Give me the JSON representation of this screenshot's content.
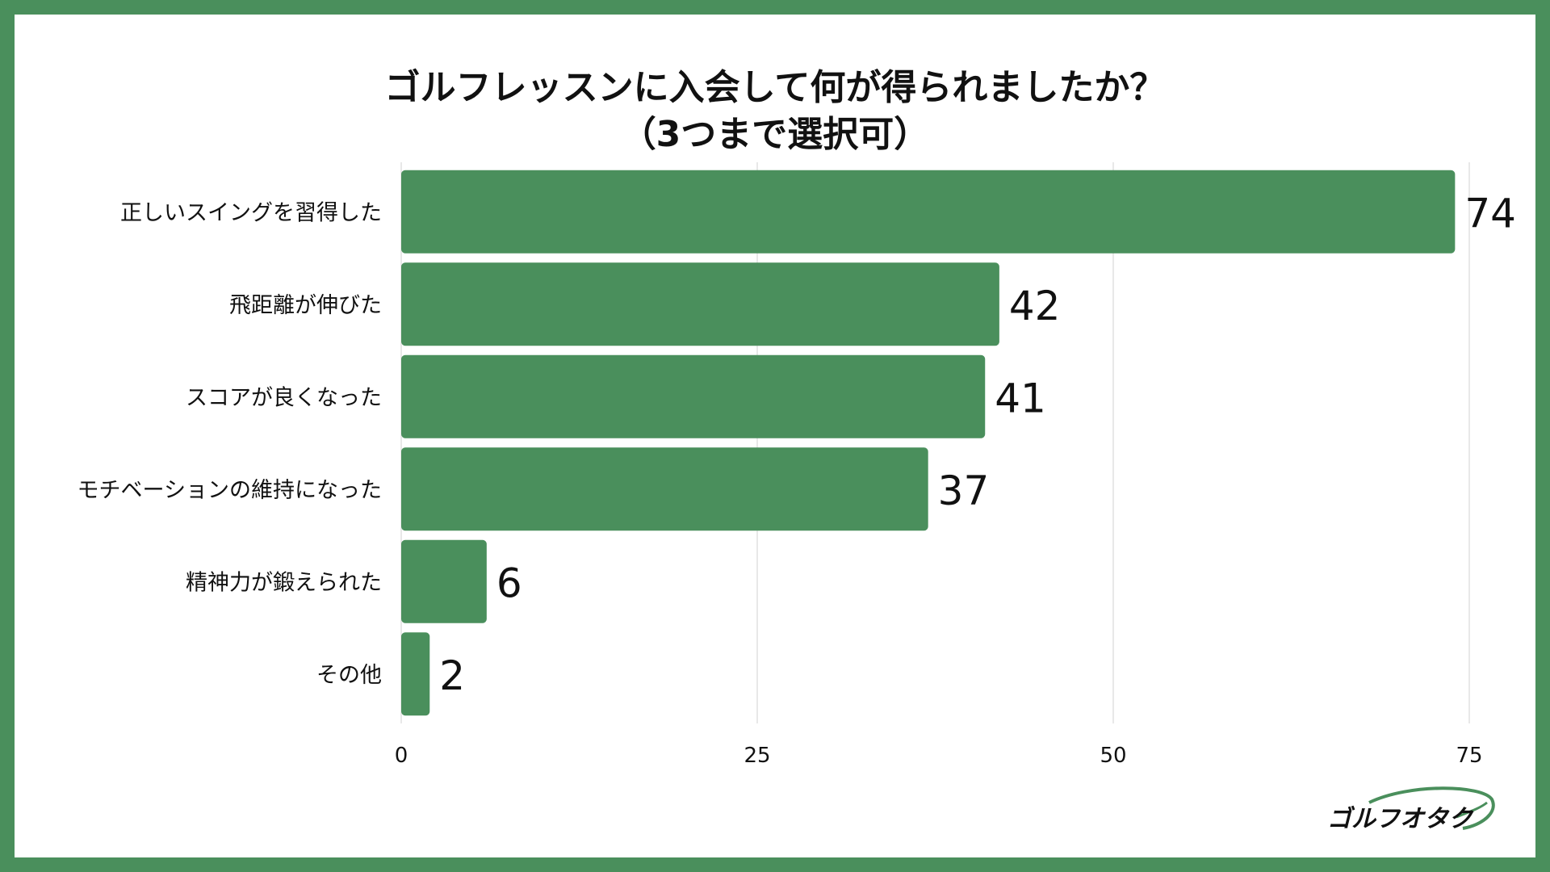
{
  "chart_data": {
    "type": "bar",
    "orientation": "horizontal",
    "title_line1": "ゴルフレッスンに入会して何が得られましたか？",
    "title_line2": "（3つまで選択可）",
    "categories": [
      "正しいスイングを習得した",
      "飛距離が伸びた",
      "スコアが良くなった",
      "モチベーションの維持になった",
      "精神力が鍛えられた",
      "その他"
    ],
    "values": [
      74,
      42,
      41,
      37,
      6,
      2
    ],
    "value_labels": [
      "74",
      "42",
      "41",
      "37",
      "6",
      "2"
    ],
    "xlim": [
      0,
      75
    ],
    "ticks": [
      0,
      25,
      50,
      75
    ],
    "tick_labels": [
      "0",
      "25",
      "50",
      "75"
    ],
    "grid": true,
    "legend": "none",
    "xlabel": "",
    "ylabel": ""
  },
  "colors": {
    "bar": "#4a8f5c",
    "frame": "#4a8f5c",
    "grid": "#d9d9d9",
    "text": "#111111"
  },
  "logo": {
    "text": "ゴルフオタク",
    "icon": "golf-swing-logo-icon"
  }
}
